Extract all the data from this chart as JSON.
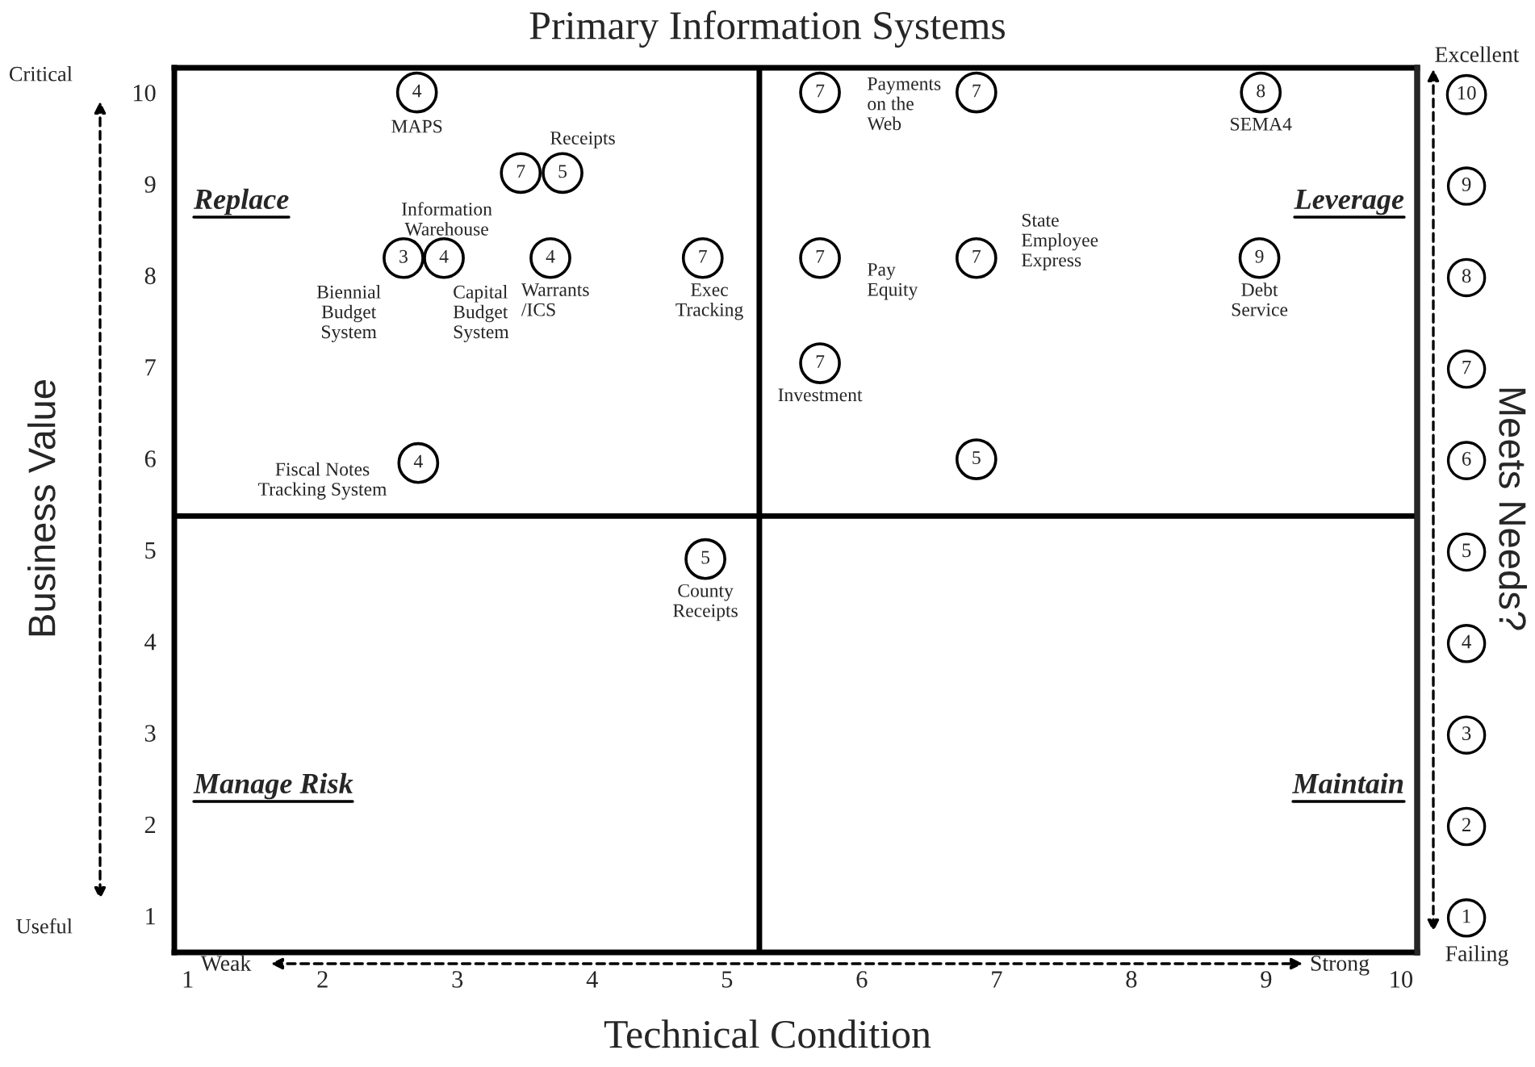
{
  "chart_data": {
    "type": "scatter",
    "title": "Primary Information Systems",
    "xlabel": "Technical Condition",
    "ylabel": "Business Value",
    "y2label": "Meets Needs?",
    "color": "#000000",
    "marker": "circle",
    "grid": false,
    "x": [
      2.7,
      3.47,
      3.78,
      2.6,
      2.9,
      3.69,
      4.82,
      2.71,
      4.84,
      5.69,
      6.85,
      8.96,
      5.69,
      6.85,
      8.95,
      5.69,
      6.85
    ],
    "values": [
      10,
      9.12,
      9.12,
      8.19,
      8.19,
      8.19,
      8.19,
      5.95,
      4.9,
      10,
      10,
      10,
      8.19,
      8.19,
      8.19,
      7.04,
      5.99
    ],
    "xlim": [
      0.9,
      10.12
    ],
    "ylim": [
      0.6,
      10.27
    ],
    "xticks": [
      1,
      2,
      3,
      4,
      5,
      6,
      7,
      8,
      9,
      10
    ],
    "yticks": [
      1,
      2,
      3,
      4,
      5,
      6,
      7,
      8,
      9,
      10
    ],
    "y2lim": [
      0.6,
      10.27
    ],
    "y2ticks": [
      1,
      2,
      3,
      4,
      5,
      6,
      7,
      8,
      9,
      10
    ],
    "ref_lines": [
      {
        "axis": "x",
        "value": 5.24
      },
      {
        "axis": "y",
        "value": 5.37
      }
    ],
    "annotations": [
      {
        "text": "MAPS",
        "x": 2.7,
        "y": 10
      },
      {
        "text": "Information\nWarehouse",
        "x": 3.47,
        "y": 9.12
      },
      {
        "text": "Receipts",
        "x": 3.78,
        "y": 9.12
      },
      {
        "text": "Biennial\nBudget\nSystem",
        "x": 2.6,
        "y": 8.19
      },
      {
        "text": "Capital\nBudget\nSystem",
        "x": 2.9,
        "y": 8.19
      },
      {
        "text": "Warrants\n/ICS",
        "x": 3.69,
        "y": 8.19
      },
      {
        "text": "Exec\nTracking",
        "x": 4.82,
        "y": 8.19
      },
      {
        "text": "Fiscal Notes\nTracking System",
        "x": 2.71,
        "y": 5.95
      },
      {
        "text": "County\nReceipts",
        "x": 4.84,
        "y": 4.9
      },
      {
        "text": "Payments\non the\nWeb",
        "x": 5.69,
        "y": 10
      },
      {
        "text": "SEMA4",
        "x": 8.96,
        "y": 10
      },
      {
        "text": "Pay\nEquity",
        "x": 5.69,
        "y": 8.19
      },
      {
        "text": "State\nEmployee\nExpress",
        "x": 6.85,
        "y": 8.19
      },
      {
        "text": "Debt\nService",
        "x": 8.95,
        "y": 8.19
      },
      {
        "text": "Investment",
        "x": 5.69,
        "y": 7.04
      },
      {
        "text": "4",
        "x": 2.7,
        "y": 10
      },
      {
        "text": "7",
        "x": 3.47,
        "y": 9.12
      },
      {
        "text": "5",
        "x": 3.78,
        "y": 9.12
      },
      {
        "text": "3",
        "x": 2.6,
        "y": 8.19
      },
      {
        "text": "4",
        "x": 2.9,
        "y": 8.19
      },
      {
        "text": "4",
        "x": 3.69,
        "y": 8.19
      },
      {
        "text": "7",
        "x": 4.82,
        "y": 8.19
      },
      {
        "text": "4",
        "x": 2.71,
        "y": 5.95
      },
      {
        "text": "5",
        "x": 4.84,
        "y": 4.9
      },
      {
        "text": "7",
        "x": 5.69,
        "y": 10
      },
      {
        "text": "7",
        "x": 6.85,
        "y": 10
      },
      {
        "text": "8",
        "x": 8.96,
        "y": 10
      },
      {
        "text": "7",
        "x": 5.69,
        "y": 8.19
      },
      {
        "text": "7",
        "x": 6.85,
        "y": 8.19
      },
      {
        "text": "9",
        "x": 8.95,
        "y": 8.19
      },
      {
        "text": "7",
        "x": 5.69,
        "y": 7.04
      },
      {
        "text": "5",
        "x": 6.85,
        "y": 5.99
      },
      "Replace",
      "Leverage",
      "Manage Risk",
      "Maintain",
      "Critical",
      "Useful",
      "Weak",
      "Strong",
      "Excellent",
      "Failing"
    ]
  }
}
